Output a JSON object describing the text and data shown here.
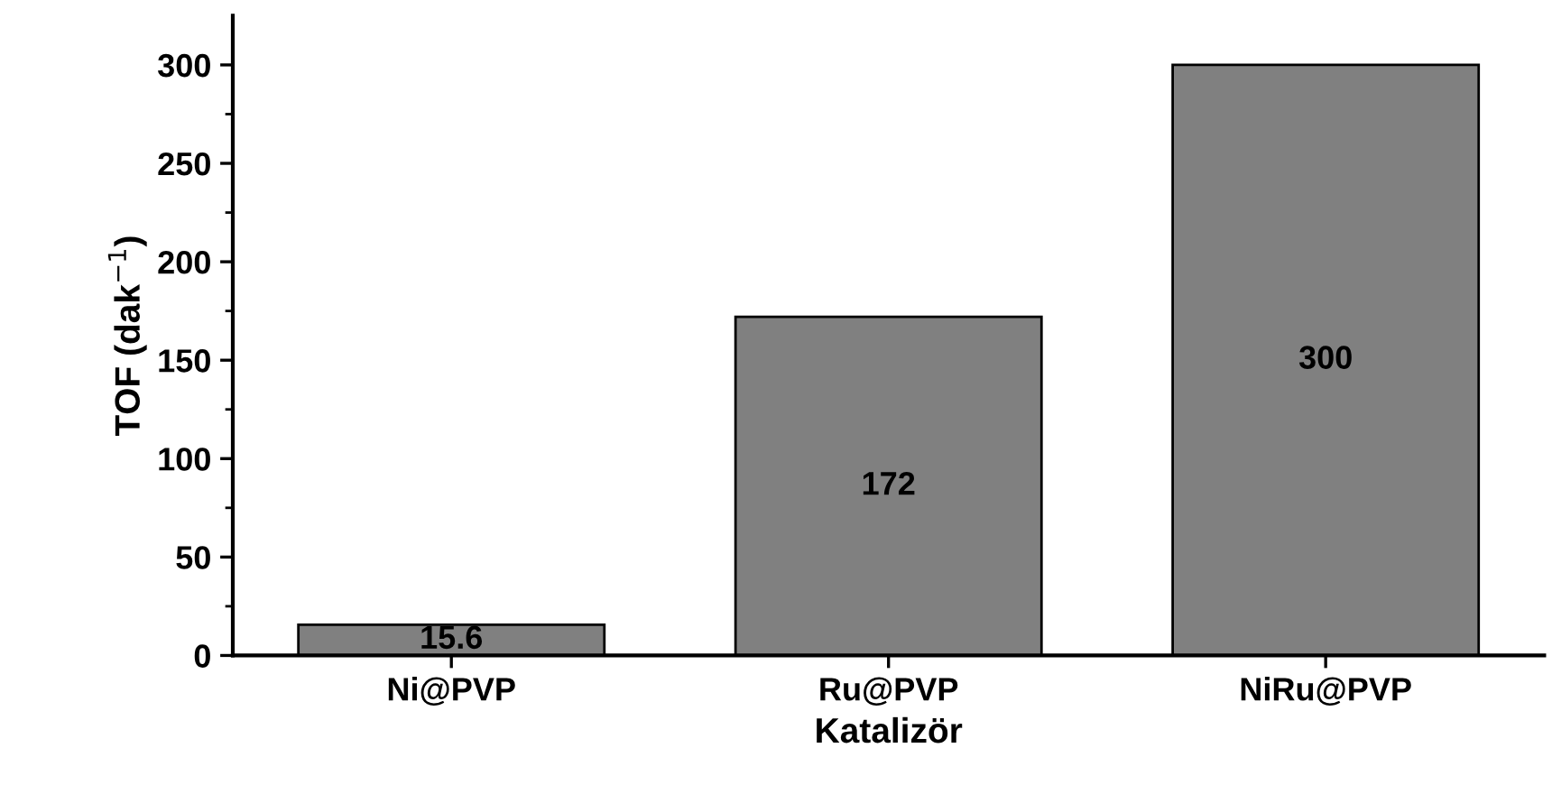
{
  "chart_data": {
    "type": "bar",
    "xlabel": "Katalizör",
    "ylabel": "TOF (dak$^{−1}$)",
    "categories": [
      "Ni@PVP",
      "Ru@PVP",
      "NiRu@PVP"
    ],
    "values": [
      15.6,
      172,
      300
    ],
    "color": "#808080",
    "data_labels": true,
    "ylim": [
      0,
      325
    ],
    "yticks": [
      0,
      {
        "value": 25,
        "label": null
      },
      50,
      {
        "value": 75,
        "label": null
      },
      100,
      {
        "value": 125,
        "label": null
      },
      150,
      {
        "value": 175,
        "label": null
      },
      200,
      {
        "value": 225,
        "label": null
      },
      250,
      {
        "value": 275,
        "label": null
      },
      300
    ],
    "grid": false,
    "legend": false
  }
}
